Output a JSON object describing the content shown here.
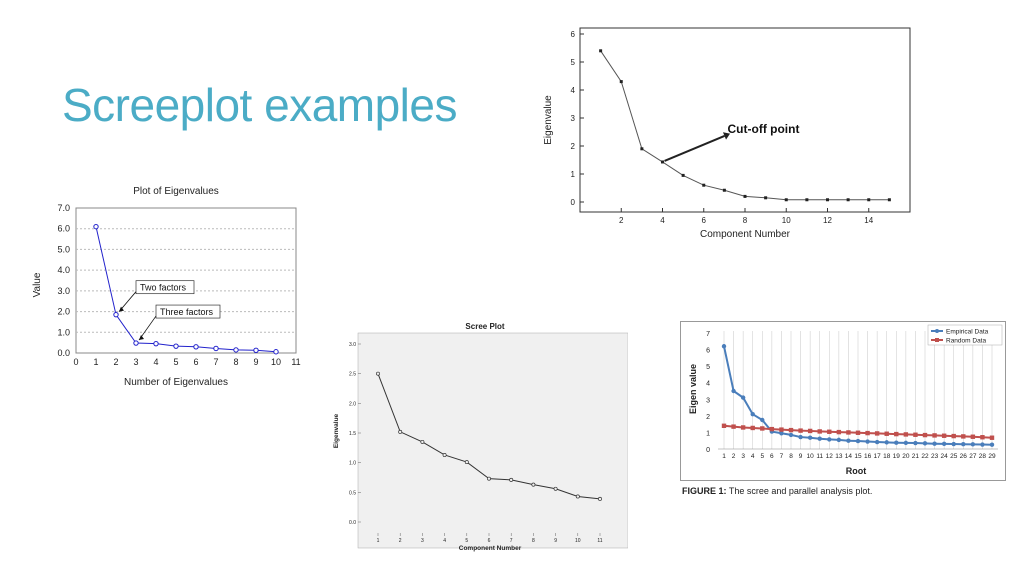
{
  "slide": {
    "title": "Screeplot examples"
  },
  "chart_data": [
    {
      "id": "top-right",
      "type": "line",
      "title": "",
      "xlabel": "Component Number",
      "ylabel": "Eigenvalue",
      "x": [
        1,
        2,
        3,
        4,
        5,
        6,
        7,
        8,
        9,
        10,
        11,
        12,
        13,
        14,
        15
      ],
      "values": [
        5.4,
        4.3,
        1.9,
        1.43,
        0.95,
        0.6,
        0.42,
        0.2,
        0.15,
        0.08,
        0.08,
        0.08,
        0.08,
        0.08,
        0.08
      ],
      "xlim": [
        0,
        16
      ],
      "ylim": [
        0,
        6
      ],
      "xticks": [
        "2",
        "4",
        "6",
        "8",
        "10",
        "12",
        "14"
      ],
      "xtick_values": [
        2,
        4,
        6,
        8,
        10,
        12,
        14
      ],
      "yticks": [
        "0",
        "1",
        "2",
        "3",
        "4",
        "5",
        "6"
      ],
      "grid": false,
      "annotations": [
        {
          "text": "Cut-off point",
          "x": 4,
          "y": 1.43
        }
      ]
    },
    {
      "id": "left",
      "type": "line",
      "title": "Plot of Eigenvalues",
      "xlabel": "Number of Eigenvalues",
      "ylabel": "Value",
      "x": [
        1,
        2,
        3,
        4,
        5,
        6,
        7,
        8,
        9,
        10
      ],
      "values": [
        6.1,
        1.85,
        0.48,
        0.45,
        0.33,
        0.3,
        0.22,
        0.15,
        0.13,
        0.06
      ],
      "xlim": [
        0,
        11
      ],
      "ylim": [
        0,
        7
      ],
      "xticks": [
        "0",
        "1",
        "2",
        "3",
        "4",
        "5",
        "6",
        "7",
        "8",
        "9",
        "10",
        "11"
      ],
      "yticks": [
        "0.0",
        "1.0",
        "2.0",
        "3.0",
        "4.0",
        "5.0",
        "6.0",
        "7.0"
      ],
      "grid": true,
      "annotations": [
        {
          "text": "Two factors",
          "x": 2,
          "y": 1.85
        },
        {
          "text": "Three factors",
          "x": 3,
          "y": 0.48
        }
      ],
      "color": "#2222cc"
    },
    {
      "id": "middle",
      "type": "line",
      "title": "Scree Plot",
      "xlabel": "Component Number",
      "ylabel": "Eigenvalue",
      "x": [
        1,
        2,
        3,
        4,
        5,
        6,
        7,
        8,
        9,
        10,
        11
      ],
      "values": [
        2.5,
        1.52,
        1.35,
        1.13,
        1.01,
        0.73,
        0.71,
        0.63,
        0.56,
        0.43,
        0.39
      ],
      "xlim": [
        0.5,
        11.5
      ],
      "ylim": [
        0,
        3
      ],
      "xticks": [
        "1",
        "2",
        "3",
        "4",
        "5",
        "6",
        "7",
        "8",
        "9",
        "10",
        "11"
      ],
      "yticks": [
        "0.0",
        "0.5",
        "1.0",
        "1.5",
        "2.0",
        "2.5",
        "3.0"
      ],
      "grid": false,
      "background": "#f0f0f0"
    },
    {
      "id": "bottom-right",
      "type": "line",
      "title": "",
      "xlabel": "Root",
      "ylabel": "Eigen value",
      "categories": [
        "1",
        "2",
        "3",
        "4",
        "5",
        "6",
        "7",
        "8",
        "9",
        "10",
        "11",
        "12",
        "13",
        "14",
        "15",
        "16",
        "17",
        "18",
        "19",
        "20",
        "21",
        "22",
        "23",
        "24",
        "25",
        "26",
        "27",
        "28",
        "29"
      ],
      "series": [
        {
          "name": "Empirical Data",
          "color": "#4a7ebb",
          "values": [
            6.2,
            3.5,
            3.1,
            2.1,
            1.75,
            1.05,
            0.95,
            0.85,
            0.72,
            0.68,
            0.62,
            0.58,
            0.55,
            0.5,
            0.48,
            0.45,
            0.42,
            0.4,
            0.38,
            0.37,
            0.36,
            0.34,
            0.32,
            0.31,
            0.3,
            0.29,
            0.28,
            0.27,
            0.26
          ]
        },
        {
          "name": "Random Data",
          "color": "#c0504d",
          "values": [
            1.4,
            1.35,
            1.3,
            1.27,
            1.24,
            1.2,
            1.17,
            1.14,
            1.11,
            1.09,
            1.06,
            1.04,
            1.02,
            1.0,
            0.98,
            0.96,
            0.94,
            0.92,
            0.9,
            0.88,
            0.86,
            0.84,
            0.82,
            0.8,
            0.78,
            0.76,
            0.74,
            0.71,
            0.68
          ]
        }
      ],
      "ylim": [
        0,
        7
      ],
      "yticks": [
        "0",
        "1",
        "2",
        "3",
        "4",
        "5",
        "6",
        "7"
      ],
      "grid": true,
      "legend": "top-right",
      "caption_label": "FIGURE 1:",
      "caption_text": " The scree and parallel analysis plot."
    }
  ]
}
